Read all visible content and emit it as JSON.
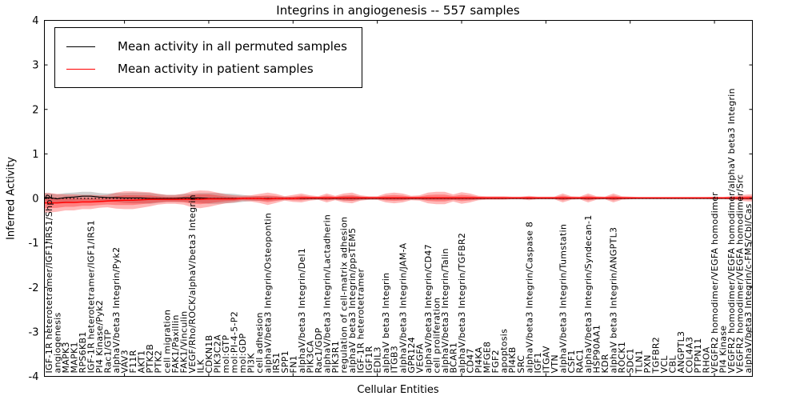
{
  "figure": {
    "title": "Integrins in angiogenesis -- 557 samples",
    "xlabel": "Cellular Entities",
    "ylabel": "Inferred Activity",
    "legend": [
      {
        "label": "Mean activity in all permuted samples",
        "color": "#000000"
      },
      {
        "label": "Mean activity in patient samples",
        "color": "#ff0000"
      }
    ]
  },
  "chart_data": {
    "type": "line",
    "title": "Integrins in angiogenesis -- 557 samples",
    "xlabel": "Cellular Entities",
    "ylabel": "Inferred Activity",
    "ylim": [
      -4,
      4
    ],
    "yticks": [
      4,
      3,
      2,
      1,
      0,
      -1,
      -2,
      -3,
      -4
    ],
    "grid": false,
    "legend_position": "upper left",
    "zero_line": {
      "style": "dotted",
      "color": "#000000",
      "y": 0
    },
    "band_colors": {
      "permuted": "rgba(120,120,120,0.35)",
      "patient": "rgba(255,0,0,0.28)"
    },
    "categories": [
      "IGF-1R heterotetramer/IGF1/IRS1/Shp2",
      "angiogenesis",
      "MAPK3",
      "MAPK1",
      "RPS6KB1",
      "IGF-1R heterotetramer/IGF1/IRS1",
      "PI4 Kinase/Pyk2",
      "Rac1/GTP",
      "alphaV/beta3 Integrin/Pyk2",
      "VAV3",
      "F11R",
      "AKT1",
      "PTK2B",
      "PTK2",
      "cell migration",
      "FAK1/Paxillin",
      "FAK1/Vinculin",
      "VEGF/Rho/ROCK/alphaV/beta3 Integrin",
      "ILK",
      "CDKN1B",
      "PIK3C2A",
      "mol:GTP",
      "mol:PI-4-5-P2",
      "mol:GDP",
      "PI3K",
      "cell adhesion",
      "alphaV/beta3 Integrin/Osteopontin",
      "IRS1",
      "SPP1",
      "FN1",
      "alphaV/beta3 Integrin/Del1",
      "PIK3CA",
      "Rac1/GDP",
      "alphaV/beta3 Integrin/Lactadherin",
      "PIK3R1",
      "regulation of cell-matrix adhesion",
      "alphaV beta3 Integrin/ppsTEM5",
      "IGF-1R heterotetramer",
      "IGF1R",
      "EDIL3",
      "alphaV beta3 Integrin",
      "ITGB3",
      "alphaV/beta3 Integrin/JAM-A",
      "GPR124",
      "VEGFA",
      "alphaV/beta3 Integrin/CD47",
      "cell proliferation",
      "alphaV/beta3 Integrin/Talin",
      "BCAR1",
      "alphaV/beta3 Integrin/TGFBR2",
      "CD47",
      "PI4KA",
      "MFGE8",
      "FGF2",
      "apoptosis",
      "PI4KB",
      "SRC",
      "alphaV/beta3 Integrin/Caspase 8",
      "IGF1",
      "ITGAV",
      "VTN",
      "alphaV/beta3 Integrin/Tumstatin",
      "CSF1",
      "RAC1",
      "alphaV/beta3 Integrin/Syndecan-1",
      "HSP90AA1",
      "KDR",
      "alphaV beta3 Integrin/ANGPTL3",
      "ROCK1",
      "SDC1",
      "TLN1",
      "PXN",
      "TGFBR2",
      "VCL",
      "CBL",
      "ANGPTL3",
      "COL4A3",
      "PTPN11",
      "RHOA",
      "VEGFR2 homodimer/VEGFA homodimer",
      "PI4 Kinase",
      "VEGFR2 homodimer/VEGFA homodimer/alphaV beta3 Integrin",
      "VEGFR2 homodimer/VEGFA homodimer/Src",
      "alphaV/beta3 Integrin/c-FMS/Cbl/Cas"
    ],
    "series": [
      {
        "name": "Mean activity in all permuted samples",
        "color": "#000000",
        "values": [
          0.02,
          -0.01,
          0.02,
          0.03,
          0.05,
          0.05,
          0.03,
          0.02,
          0.02,
          0.01,
          0.01,
          0.01,
          0,
          0,
          0,
          0,
          0.01,
          0.01,
          0.01,
          0,
          0,
          0,
          0,
          0,
          0,
          0,
          0,
          0,
          0,
          0,
          0,
          0,
          0,
          0,
          0,
          0,
          0,
          0,
          0,
          0,
          0,
          0,
          0,
          0,
          0,
          0,
          0,
          0,
          0,
          0,
          0,
          0,
          0,
          0,
          0,
          0,
          0,
          0,
          0,
          0,
          0,
          0,
          0,
          0,
          0,
          0,
          0,
          0,
          0,
          0,
          0,
          0,
          0,
          0,
          0,
          0,
          0,
          0,
          0,
          0,
          0,
          0,
          0,
          0
        ],
        "band_halfwidth": [
          0.1,
          0.1,
          0.1,
          0.1,
          0.1,
          0.1,
          0.09,
          0.09,
          0.1,
          0.11,
          0.12,
          0.12,
          0.12,
          0.1,
          0.08,
          0.08,
          0.09,
          0.1,
          0.11,
          0.12,
          0.12,
          0.11,
          0.1,
          0.08,
          0.06,
          0.05,
          0.05,
          0.04,
          0.04,
          0.03,
          0.03,
          0.03,
          0.03,
          0.03,
          0.03,
          0.05,
          0.05,
          0.04,
          0.03,
          0.03,
          0.03,
          0.03,
          0.03,
          0.03,
          0.03,
          0.03,
          0.03,
          0.03,
          0.03,
          0.03,
          0.03,
          0.03,
          0.02,
          0.02,
          0.02,
          0.02,
          0.02,
          0.02,
          0.02,
          0.02,
          0.02,
          0.03,
          0.02,
          0.02,
          0.03,
          0.02,
          0.02,
          0.03,
          0.02,
          0.02,
          0.02,
          0.02,
          0.02,
          0.02,
          0.02,
          0.02,
          0.02,
          0.02,
          0.02,
          0.02,
          0.02,
          0.02,
          0.02,
          0.02
        ]
      },
      {
        "name": "Mean activity in patient samples",
        "color": "#ff0000",
        "values": [
          -0.1,
          -0.1,
          -0.09,
          -0.09,
          -0.08,
          -0.08,
          -0.07,
          -0.06,
          -0.05,
          -0.04,
          -0.04,
          -0.03,
          -0.02,
          -0.02,
          -0.02,
          -0.02,
          -0.02,
          -0.02,
          -0.02,
          -0.01,
          -0.01,
          -0.01,
          -0.01,
          0,
          0,
          0,
          -0.01,
          0,
          0,
          0,
          0.01,
          0.01,
          0.01,
          0.01,
          0.01,
          0.01,
          0.01,
          0.01,
          0.01,
          0.01,
          0.01,
          0.01,
          0.01,
          0.01,
          0.01,
          0.01,
          0.01,
          0.01,
          0.01,
          0.01,
          0.01,
          0.01,
          0.01,
          0.01,
          0.01,
          0.01,
          0.01,
          0.01,
          0.01,
          0.01,
          0.01,
          0.01,
          0.01,
          0.01,
          0.01,
          0.01,
          0.01,
          0.01,
          0.01,
          0.01,
          0.01,
          0.01,
          0.01,
          0.01,
          0.01,
          0.01,
          0.01,
          0.01,
          0.01,
          0.01,
          0.01,
          0.01,
          0.01,
          0.01
        ],
        "band_halfwidth": [
          0.22,
          0.2,
          0.18,
          0.18,
          0.16,
          0.16,
          0.14,
          0.14,
          0.18,
          0.2,
          0.2,
          0.18,
          0.16,
          0.12,
          0.1,
          0.1,
          0.12,
          0.18,
          0.2,
          0.18,
          0.14,
          0.1,
          0.08,
          0.06,
          0.07,
          0.1,
          0.14,
          0.1,
          0.05,
          0.08,
          0.1,
          0.06,
          0.04,
          0.1,
          0.05,
          0.1,
          0.12,
          0.06,
          0.04,
          0.04,
          0.1,
          0.12,
          0.1,
          0.05,
          0.06,
          0.12,
          0.14,
          0.14,
          0.08,
          0.13,
          0.1,
          0.05,
          0.04,
          0.04,
          0.04,
          0.03,
          0.03,
          0.05,
          0.03,
          0.03,
          0.03,
          0.1,
          0.04,
          0.03,
          0.1,
          0.04,
          0.03,
          0.1,
          0.04,
          0.03,
          0.02,
          0.02,
          0.02,
          0.02,
          0.02,
          0.02,
          0.02,
          0.02,
          0.02,
          0.03,
          0.02,
          0.04,
          0.06,
          0.08
        ]
      }
    ]
  }
}
